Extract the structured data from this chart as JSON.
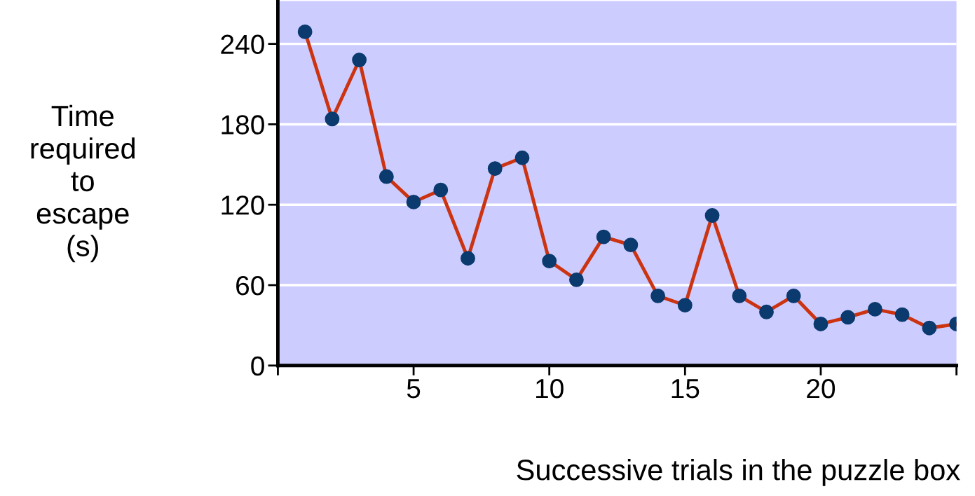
{
  "chart_data": {
    "type": "line",
    "xlabel": "Successive trials in the puzzle box",
    "ylabel": "Time\nrequired\nto\nescape\n(s)",
    "x": [
      1,
      2,
      3,
      4,
      5,
      6,
      7,
      8,
      9,
      10,
      11,
      12,
      13,
      14,
      15,
      16,
      17,
      18,
      19,
      20,
      21,
      22,
      23,
      24,
      25
    ],
    "series": [
      {
        "color": "#cc3311",
        "values": [
          249,
          184,
          228,
          141,
          122,
          131,
          80,
          147,
          155,
          78,
          64,
          96,
          90,
          52,
          45,
          112,
          52,
          40,
          52,
          31,
          36,
          42,
          38,
          28,
          31
        ]
      }
    ],
    "xlim": [
      0,
      25
    ],
    "xticks": [
      {
        "value": 0,
        "label": null
      },
      5,
      10,
      15,
      20,
      {
        "value": 25,
        "label": null
      }
    ],
    "ylim": [
      0,
      272
    ],
    "yticks": [
      0,
      60,
      120,
      180,
      240
    ],
    "grid": "y",
    "marker": "circle",
    "line_style": "solid",
    "legend": false
  }
}
